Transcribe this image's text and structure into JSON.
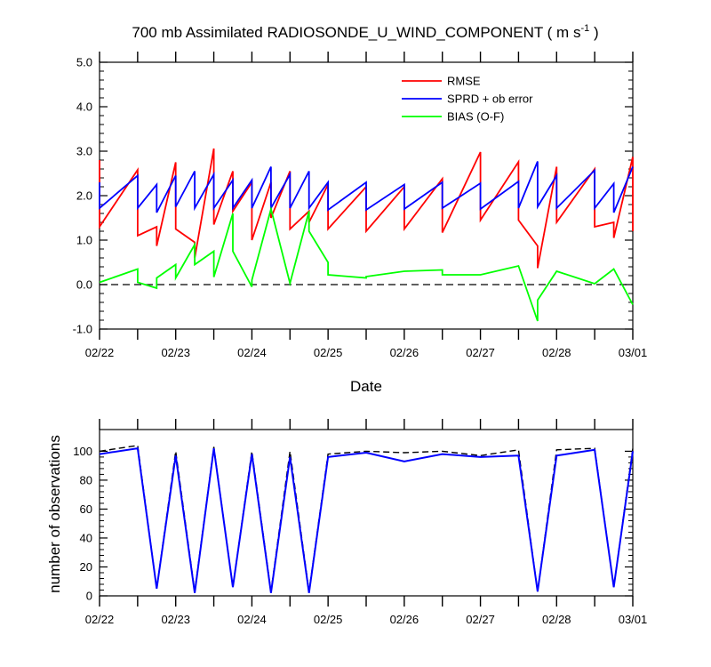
{
  "chart_data": [
    {
      "type": "line",
      "title": "700 mb Assimilated RADIOSONDE_U_WIND_COMPONENT",
      "title_units": "( m s",
      "title_units_sup": "-1",
      "title_units_close": ")",
      "xlabel": "Date",
      "ylabel": "",
      "x_tick_labels": [
        "02/22",
        "02/23",
        "02/24",
        "02/25",
        "02/26",
        "02/27",
        "02/28",
        "03/01"
      ],
      "x_tick_days": [
        0,
        1,
        2,
        3,
        4,
        5,
        6,
        7
      ],
      "xlim": [
        0,
        7
      ],
      "ylim": [
        -1.0,
        5.0
      ],
      "y_ticks": [
        -1.0,
        0.0,
        1.0,
        2.0,
        3.0,
        4.0,
        5.0
      ],
      "y_tick_labels": [
        "-1.0",
        "0.0",
        "1.0",
        "2.0",
        "3.0",
        "4.0",
        "5.0"
      ],
      "zero_line": true,
      "legend_position": "top-right",
      "series": [
        {
          "name": "RMSE",
          "color": "#ff0000",
          "points": [
            [
              0.0,
              2.8
            ],
            [
              0.0,
              1.3
            ],
            [
              0.5,
              2.58
            ],
            [
              0.5,
              1.1
            ],
            [
              0.75,
              1.3
            ],
            [
              0.75,
              0.87
            ],
            [
              1.0,
              2.75
            ],
            [
              1.0,
              1.25
            ],
            [
              1.25,
              0.95
            ],
            [
              1.25,
              0.6
            ],
            [
              1.5,
              3.06
            ],
            [
              1.5,
              1.35
            ],
            [
              1.75,
              2.55
            ],
            [
              1.75,
              1.65
            ],
            [
              2.0,
              2.3
            ],
            [
              2.0,
              1.0
            ],
            [
              2.25,
              2.3
            ],
            [
              2.25,
              1.5
            ],
            [
              2.5,
              2.55
            ],
            [
              2.5,
              1.25
            ],
            [
              2.75,
              1.65
            ],
            [
              2.75,
              1.4
            ],
            [
              3.0,
              2.25
            ],
            [
              3.0,
              1.25
            ],
            [
              3.5,
              2.2
            ],
            [
              3.5,
              1.2
            ],
            [
              4.0,
              2.2
            ],
            [
              4.0,
              1.25
            ],
            [
              4.5,
              2.38
            ],
            [
              4.5,
              1.17
            ],
            [
              5.0,
              2.98
            ],
            [
              5.0,
              1.45
            ],
            [
              5.5,
              2.76
            ],
            [
              5.5,
              1.45
            ],
            [
              5.75,
              0.87
            ],
            [
              5.75,
              0.37
            ],
            [
              6.0,
              2.65
            ],
            [
              6.0,
              1.4
            ],
            [
              6.5,
              2.6
            ],
            [
              6.5,
              1.3
            ],
            [
              6.75,
              1.4
            ],
            [
              6.75,
              1.05
            ],
            [
              7.0,
              2.87
            ],
            [
              7.0,
              1.2
            ]
          ]
        },
        {
          "name": "SPRD + ob error",
          "color": "#0000ff",
          "points": [
            [
              0.0,
              2.3
            ],
            [
              0.0,
              1.72
            ],
            [
              0.5,
              2.45
            ],
            [
              0.5,
              1.72
            ],
            [
              0.75,
              2.25
            ],
            [
              0.75,
              1.62
            ],
            [
              1.0,
              2.45
            ],
            [
              1.0,
              1.75
            ],
            [
              1.25,
              2.55
            ],
            [
              1.25,
              1.72
            ],
            [
              1.5,
              2.48
            ],
            [
              1.5,
              1.72
            ],
            [
              1.75,
              2.35
            ],
            [
              1.75,
              1.72
            ],
            [
              2.0,
              2.35
            ],
            [
              2.0,
              1.72
            ],
            [
              2.25,
              2.65
            ],
            [
              2.25,
              1.72
            ],
            [
              2.5,
              2.48
            ],
            [
              2.5,
              1.72
            ],
            [
              2.75,
              2.55
            ],
            [
              2.75,
              1.72
            ],
            [
              3.0,
              2.3
            ],
            [
              3.0,
              1.68
            ],
            [
              3.5,
              2.3
            ],
            [
              3.5,
              1.68
            ],
            [
              4.0,
              2.25
            ],
            [
              4.0,
              1.7
            ],
            [
              4.5,
              2.3
            ],
            [
              4.5,
              1.72
            ],
            [
              5.0,
              2.28
            ],
            [
              5.0,
              1.7
            ],
            [
              5.5,
              2.32
            ],
            [
              5.5,
              1.72
            ],
            [
              5.75,
              2.77
            ],
            [
              5.75,
              1.75
            ],
            [
              6.0,
              2.45
            ],
            [
              6.0,
              1.72
            ],
            [
              6.5,
              2.57
            ],
            [
              6.5,
              1.72
            ],
            [
              6.75,
              2.27
            ],
            [
              6.75,
              1.62
            ],
            [
              7.0,
              2.65
            ]
          ]
        },
        {
          "name": "BIAS (O-F)",
          "color": "#00ff00",
          "points": [
            [
              0.0,
              0.05
            ],
            [
              0.5,
              0.35
            ],
            [
              0.5,
              0.05
            ],
            [
              0.75,
              -0.08
            ],
            [
              0.75,
              0.15
            ],
            [
              1.0,
              0.45
            ],
            [
              1.0,
              0.15
            ],
            [
              1.25,
              0.9
            ],
            [
              1.25,
              0.45
            ],
            [
              1.5,
              0.75
            ],
            [
              1.5,
              0.17
            ],
            [
              1.75,
              1.6
            ],
            [
              1.75,
              0.75
            ],
            [
              2.0,
              -0.05
            ],
            [
              2.0,
              0.1
            ],
            [
              2.25,
              1.7
            ],
            [
              2.5,
              0.03
            ],
            [
              2.75,
              1.65
            ],
            [
              2.75,
              1.2
            ],
            [
              3.0,
              0.5
            ],
            [
              3.0,
              0.22
            ],
            [
              3.5,
              0.15
            ],
            [
              3.5,
              0.18
            ],
            [
              4.0,
              0.3
            ],
            [
              4.5,
              0.33
            ],
            [
              4.5,
              0.22
            ],
            [
              5.0,
              0.22
            ],
            [
              5.5,
              0.42
            ],
            [
              5.75,
              -0.82
            ],
            [
              5.75,
              -0.35
            ],
            [
              6.0,
              0.3
            ],
            [
              6.5,
              0.02
            ],
            [
              6.75,
              0.35
            ],
            [
              7.0,
              -0.45
            ]
          ]
        }
      ]
    },
    {
      "type": "line",
      "title": "",
      "xlabel": "",
      "ylabel": "number of observations",
      "x_tick_labels": [
        "02/22",
        "02/23",
        "02/24",
        "02/25",
        "02/26",
        "02/27",
        "02/28",
        "03/01"
      ],
      "x_tick_days": [
        0,
        1,
        2,
        3,
        4,
        5,
        6,
        7
      ],
      "xlim": [
        0,
        7
      ],
      "ylim": [
        0,
        115
      ],
      "y_ticks": [
        0,
        20,
        40,
        60,
        80,
        100
      ],
      "y_tick_labels": [
        "0",
        "20",
        "40",
        "60",
        "80",
        "100"
      ],
      "series": [
        {
          "name": "",
          "color": "#000000",
          "dashed": true,
          "points": [
            [
              0,
              100
            ],
            [
              0.5,
              104
            ],
            [
              0.75,
              5
            ],
            [
              1.0,
              100
            ],
            [
              1.25,
              3
            ],
            [
              1.5,
              103
            ],
            [
              1.75,
              6
            ],
            [
              2.0,
              100
            ],
            [
              2.25,
              3
            ],
            [
              2.5,
              100
            ],
            [
              2.75,
              3
            ],
            [
              3.0,
              98
            ],
            [
              3.5,
              100
            ],
            [
              4.0,
              99
            ],
            [
              4.5,
              100
            ],
            [
              5.0,
              97
            ],
            [
              5.5,
              101
            ],
            [
              5.75,
              3
            ],
            [
              6.0,
              101
            ],
            [
              6.5,
              102
            ],
            [
              6.75,
              6
            ],
            [
              7.0,
              102
            ]
          ]
        },
        {
          "name": "",
          "color": "#0000ff",
          "points": [
            [
              0,
              98
            ],
            [
              0.5,
              102
            ],
            [
              0.75,
              5
            ],
            [
              1.0,
              97
            ],
            [
              1.25,
              2
            ],
            [
              1.5,
              102
            ],
            [
              1.75,
              6
            ],
            [
              2.0,
              98
            ],
            [
              2.25,
              2
            ],
            [
              2.5,
              96
            ],
            [
              2.75,
              2
            ],
            [
              3.0,
              96
            ],
            [
              3.5,
              99
            ],
            [
              4.0,
              93
            ],
            [
              4.5,
              98
            ],
            [
              5.0,
              96
            ],
            [
              5.5,
              97
            ],
            [
              5.75,
              3
            ],
            [
              6.0,
              97
            ],
            [
              6.5,
              101
            ],
            [
              6.75,
              6
            ],
            [
              7.0,
              100
            ]
          ]
        }
      ]
    }
  ]
}
